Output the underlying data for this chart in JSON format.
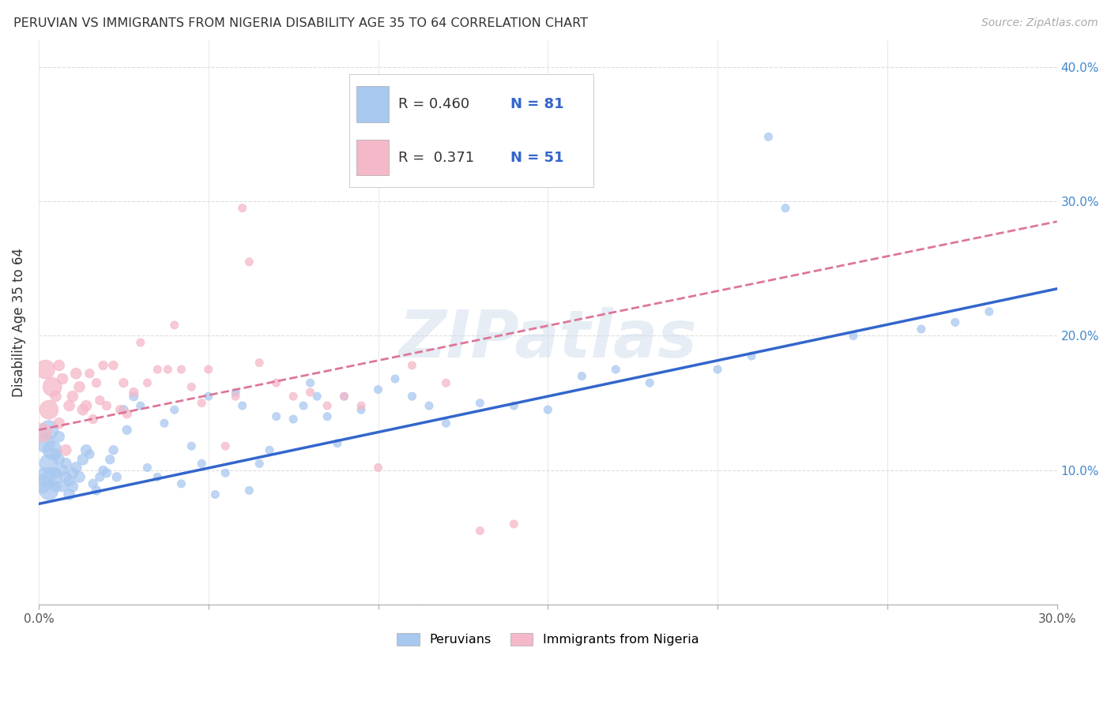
{
  "title": "PERUVIAN VS IMMIGRANTS FROM NIGERIA DISABILITY AGE 35 TO 64 CORRELATION CHART",
  "source": "Source: ZipAtlas.com",
  "ylabel": "Disability Age 35 to 64",
  "xlim": [
    0.0,
    0.3
  ],
  "ylim": [
    0.0,
    0.42
  ],
  "x_ticks": [
    0.0,
    0.05,
    0.1,
    0.15,
    0.2,
    0.25,
    0.3
  ],
  "y_ticks": [
    0.0,
    0.1,
    0.2,
    0.3,
    0.4
  ],
  "y_tick_labels_right": [
    "",
    "10.0%",
    "20.0%",
    "30.0%",
    "40.0%"
  ],
  "r_peruvian": 0.46,
  "n_peruvian": 81,
  "r_nigeria": 0.371,
  "n_nigeria": 51,
  "color_peruvian": "#a8c8f0",
  "color_nigeria": "#f5b8c8",
  "trendline_peruvian_color": "#3366cc",
  "trendline_nigeria_color": "#dd7799",
  "legend_label_peruvian": "Peruvians",
  "legend_label_nigeria": "Immigrants from Nigeria",
  "watermark": "ZIPatlas",
  "peruvian_x": [
    0.001,
    0.002,
    0.002,
    0.003,
    0.003,
    0.003,
    0.004,
    0.004,
    0.005,
    0.005,
    0.005,
    0.006,
    0.006,
    0.007,
    0.007,
    0.008,
    0.008,
    0.009,
    0.009,
    0.01,
    0.01,
    0.011,
    0.012,
    0.013,
    0.014,
    0.015,
    0.016,
    0.017,
    0.018,
    0.019,
    0.02,
    0.021,
    0.022,
    0.023,
    0.025,
    0.026,
    0.028,
    0.03,
    0.032,
    0.035,
    0.037,
    0.04,
    0.042,
    0.045,
    0.048,
    0.05,
    0.052,
    0.055,
    0.058,
    0.06,
    0.062,
    0.065,
    0.068,
    0.07,
    0.075,
    0.078,
    0.08,
    0.082,
    0.085,
    0.088,
    0.09,
    0.095,
    0.1,
    0.105,
    0.11,
    0.115,
    0.12,
    0.13,
    0.14,
    0.15,
    0.16,
    0.17,
    0.18,
    0.2,
    0.21,
    0.215,
    0.22,
    0.24,
    0.26,
    0.27,
    0.28
  ],
  "peruvian_y": [
    0.09,
    0.12,
    0.095,
    0.13,
    0.105,
    0.085,
    0.115,
    0.095,
    0.112,
    0.098,
    0.088,
    0.125,
    0.108,
    0.1,
    0.088,
    0.095,
    0.105,
    0.092,
    0.082,
    0.098,
    0.088,
    0.102,
    0.095,
    0.108,
    0.115,
    0.112,
    0.09,
    0.085,
    0.095,
    0.1,
    0.098,
    0.108,
    0.115,
    0.095,
    0.145,
    0.13,
    0.155,
    0.148,
    0.102,
    0.095,
    0.135,
    0.145,
    0.09,
    0.118,
    0.105,
    0.155,
    0.082,
    0.098,
    0.158,
    0.148,
    0.085,
    0.105,
    0.115,
    0.14,
    0.138,
    0.148,
    0.165,
    0.155,
    0.14,
    0.12,
    0.155,
    0.145,
    0.16,
    0.168,
    0.155,
    0.148,
    0.135,
    0.15,
    0.148,
    0.145,
    0.17,
    0.175,
    0.165,
    0.175,
    0.185,
    0.348,
    0.295,
    0.2,
    0.205,
    0.21,
    0.218
  ],
  "nigeria_x": [
    0.001,
    0.002,
    0.003,
    0.004,
    0.005,
    0.006,
    0.006,
    0.007,
    0.008,
    0.009,
    0.01,
    0.011,
    0.012,
    0.013,
    0.014,
    0.015,
    0.016,
    0.017,
    0.018,
    0.019,
    0.02,
    0.022,
    0.024,
    0.025,
    0.026,
    0.028,
    0.03,
    0.032,
    0.035,
    0.038,
    0.04,
    0.042,
    0.045,
    0.048,
    0.05,
    0.055,
    0.058,
    0.06,
    0.062,
    0.065,
    0.07,
    0.075,
    0.08,
    0.085,
    0.09,
    0.095,
    0.1,
    0.11,
    0.12,
    0.13,
    0.14
  ],
  "nigeria_y": [
    0.128,
    0.175,
    0.145,
    0.162,
    0.155,
    0.178,
    0.135,
    0.168,
    0.115,
    0.148,
    0.155,
    0.172,
    0.162,
    0.145,
    0.148,
    0.172,
    0.138,
    0.165,
    0.152,
    0.178,
    0.148,
    0.178,
    0.145,
    0.165,
    0.142,
    0.158,
    0.195,
    0.165,
    0.175,
    0.175,
    0.208,
    0.175,
    0.162,
    0.15,
    0.175,
    0.118,
    0.155,
    0.295,
    0.255,
    0.18,
    0.165,
    0.155,
    0.158,
    0.148,
    0.155,
    0.148,
    0.102,
    0.178,
    0.165,
    0.055,
    0.06
  ]
}
